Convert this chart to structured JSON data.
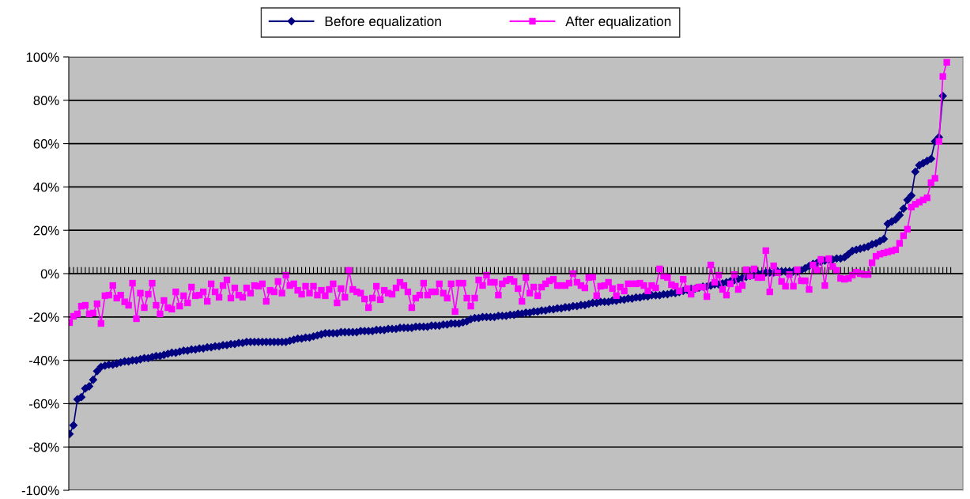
{
  "chart_data": {
    "type": "line",
    "categories": [
      null,
      null,
      null,
      null,
      null,
      null,
      null,
      null,
      null,
      null,
      null,
      null,
      null,
      null,
      null,
      null,
      null,
      null,
      null,
      null,
      null,
      null,
      null,
      null,
      null,
      null,
      null,
      null,
      null,
      null,
      null,
      null,
      null,
      null,
      null,
      null,
      null,
      null,
      null,
      null,
      null,
      null,
      null,
      null,
      null,
      null,
      null,
      null,
      null,
      null,
      null,
      null,
      null,
      null,
      null,
      null,
      null,
      null,
      null,
      null,
      null,
      null,
      null,
      null,
      null,
      null,
      null,
      null,
      null,
      null,
      null,
      null,
      null,
      null,
      null,
      null,
      null,
      null,
      null,
      null,
      null,
      null,
      null,
      null,
      null,
      null,
      null,
      null,
      null,
      null,
      null,
      null,
      null,
      null,
      null,
      null,
      null,
      null,
      null,
      null,
      null,
      null,
      null,
      null,
      null,
      null,
      null,
      null,
      null,
      null,
      null,
      null,
      null,
      null,
      null,
      null,
      null,
      null,
      null,
      null,
      null,
      null,
      null,
      null,
      null,
      null,
      null,
      null,
      null,
      null,
      null,
      null,
      null,
      null,
      null,
      null,
      null,
      null,
      null,
      null,
      null,
      null,
      null,
      null,
      null,
      null,
      null,
      null,
      null,
      null,
      null,
      null,
      null,
      null,
      null,
      null,
      null,
      null,
      null,
      null,
      null,
      null,
      null,
      null,
      null,
      null,
      null,
      null,
      null,
      null,
      null,
      null,
      null,
      null,
      null,
      null,
      null,
      null,
      null,
      null,
      null,
      null,
      null,
      null,
      null,
      null,
      null,
      null,
      null,
      null,
      null,
      null,
      null,
      null,
      null,
      null,
      null,
      null,
      null,
      null,
      null,
      null,
      null,
      null,
      null,
      null,
      null,
      null,
      null,
      null,
      null,
      null,
      null,
      null,
      null,
      null,
      null,
      null,
      null,
      null,
      null,
      null,
      null,
      null,
      null
    ],
    "series": [
      {
        "name": "Before equalization",
        "color": "#000080",
        "marker": "diamond",
        "values": [
          -74,
          -70,
          -58,
          -57,
          -53,
          -52,
          -49,
          -45,
          -43,
          -42.5,
          -42,
          -42,
          -41.5,
          -41,
          -40.5,
          -40.5,
          -40,
          -40,
          -39.5,
          -39,
          -39,
          -38.5,
          -38,
          -38,
          -37.5,
          -37,
          -36.5,
          -36.5,
          -36,
          -35.5,
          -35.5,
          -35,
          -35,
          -34.5,
          -34.5,
          -34,
          -34,
          -33.5,
          -33.5,
          -33,
          -33,
          -32.5,
          -32.5,
          -32,
          -32,
          -31.5,
          -31.5,
          -31.5,
          -31.5,
          -31.5,
          -31.5,
          -31.5,
          -31.5,
          -31.5,
          -31.5,
          -31.5,
          -31,
          -30.5,
          -30,
          -30,
          -29.5,
          -29.5,
          -29,
          -28.5,
          -28,
          -27.5,
          -27.5,
          -27.5,
          -27.5,
          -27,
          -27,
          -27,
          -27,
          -27,
          -26.5,
          -26.5,
          -26.5,
          -26.5,
          -26,
          -26,
          -26,
          -25.5,
          -25.5,
          -25.5,
          -25,
          -25,
          -25,
          -25,
          -24.5,
          -24.5,
          -24.5,
          -24.5,
          -24,
          -24,
          -24,
          -23.5,
          -23.5,
          -23,
          -23,
          -23,
          -22.5,
          -22,
          -21,
          -20.5,
          -20.5,
          -20,
          -20,
          -20,
          -20,
          -19.5,
          -19.5,
          -19.5,
          -19,
          -19,
          -18.5,
          -18.5,
          -18,
          -18,
          -17.5,
          -17.5,
          -17,
          -17,
          -16.5,
          -16.5,
          -16,
          -16,
          -15.5,
          -15.5,
          -15,
          -15,
          -14.5,
          -14.5,
          -14,
          -13.5,
          -13.5,
          -13,
          -13,
          -13,
          -12.5,
          -12.5,
          -12,
          -12,
          -11.5,
          -11.5,
          -11,
          -11,
          -10.5,
          -10.5,
          -10,
          -10,
          -10,
          -9.5,
          -9.5,
          -9,
          -9,
          -8.5,
          -8,
          -7.5,
          -7,
          -7,
          -6.5,
          -6,
          -6,
          -5.5,
          -5,
          -5,
          -4.5,
          -4,
          -3.5,
          -3,
          -2.5,
          -2,
          -1.5,
          -1,
          -0.5,
          0,
          0,
          0.5,
          0.5,
          0.5,
          1,
          1,
          1,
          1,
          1,
          1,
          1.5,
          2.5,
          3.5,
          4.5,
          5,
          5.5,
          6,
          6.5,
          6.5,
          7,
          7,
          7.5,
          9,
          10.5,
          11,
          11.5,
          12,
          12.5,
          13.5,
          14,
          15,
          16,
          23,
          24,
          25,
          27,
          30,
          34,
          36,
          47,
          50,
          51,
          52,
          53,
          61,
          63,
          82,
          null,
          null
        ]
      },
      {
        "name": "After equalization",
        "color": "#ff00ff",
        "marker": "square",
        "values": [
          -22.6,
          -19.7,
          -18.6,
          -15,
          -14.6,
          -18.6,
          -18.2,
          -13.9,
          -23,
          -10.2,
          -9.9,
          -5.5,
          -11.3,
          -9.9,
          -13,
          -14.6,
          -4.4,
          -20.8,
          -9,
          -15.7,
          -9.5,
          -4.4,
          -14.6,
          -18.6,
          -12.4,
          -15.7,
          -16.4,
          -8.4,
          -15,
          -10.2,
          -13.5,
          -6.2,
          -10.2,
          -9.9,
          -8.4,
          -12.8,
          -4.7,
          -8.4,
          -10.9,
          -5.5,
          -2.9,
          -11.3,
          -6.6,
          -9.9,
          -10.9,
          -6.6,
          -9,
          -5.5,
          -5.8,
          -4.7,
          -12.8,
          -7.7,
          -8.4,
          -3.6,
          -9,
          -0.7,
          -5.5,
          -4.7,
          -7.7,
          -9.5,
          -5.8,
          -9,
          -5.8,
          -9.9,
          -7.7,
          -10.2,
          -7.3,
          -4.7,
          -13.5,
          -6.9,
          -10.9,
          1.5,
          -7.3,
          -8.4,
          -9,
          -11.7,
          -15.7,
          -11.3,
          -5.8,
          -12,
          -7.7,
          -9,
          -9.5,
          -6.6,
          -4,
          -5.5,
          -8.4,
          -15.7,
          -11.3,
          -9.9,
          -4.4,
          -9.9,
          -8.4,
          -8.4,
          -4.7,
          -9,
          -11.3,
          -4.7,
          -17.5,
          -4.4,
          -4.4,
          -11.3,
          -15,
          -11.3,
          -2.9,
          -5.5,
          -0.7,
          -4,
          -4,
          -9.9,
          -4.7,
          -3.3,
          -2.6,
          -3.6,
          -6.9,
          -12.8,
          -1.8,
          -9,
          -6.2,
          -10.2,
          -6.2,
          -4.7,
          -3.3,
          -2.6,
          -5.5,
          -5.5,
          -5.5,
          -4.4,
          0,
          -4,
          -5.5,
          -6.6,
          -1.8,
          -1.5,
          -10.2,
          -5.8,
          -5.5,
          -4,
          -6.9,
          -10.2,
          -6.2,
          -8,
          -4.7,
          -4.7,
          -4.7,
          -4.4,
          -5.5,
          -8,
          -5.5,
          -6.6,
          2.2,
          -1.1,
          -1.8,
          -5.1,
          -5.8,
          -8,
          -2.6,
          -6.9,
          -9.5,
          -6.9,
          -6.2,
          -6.2,
          -10.6,
          4,
          -4,
          -0.7,
          -7.3,
          -9.9,
          -4.7,
          -0.4,
          -7.3,
          -5.5,
          1.8,
          -1.1,
          2.2,
          -1.8,
          -1.8,
          10.6,
          -8.4,
          3.6,
          0.4,
          -3.6,
          -5.8,
          -0.4,
          -5.8,
          1.8,
          -3.3,
          -3.3,
          -7.3,
          4,
          1.5,
          6.6,
          -5.5,
          6.9,
          3.3,
          1.5,
          -2.2,
          -2.6,
          -2.2,
          -0.7,
          0.7,
          0,
          -0.4,
          -0.4,
          5,
          8,
          9,
          9.5,
          10,
          10.5,
          11,
          14,
          17.5,
          20.5,
          30.7,
          32,
          33,
          34,
          35,
          42,
          44,
          61,
          91,
          97.5,
          null
        ]
      }
    ],
    "ylim": [
      -100,
      100
    ],
    "yticks": [
      {
        "value": -100,
        "label": "-100%"
      },
      {
        "value": -80,
        "label": "-80%"
      },
      {
        "value": -60,
        "label": "-60%"
      },
      {
        "value": -40,
        "label": "-40%"
      },
      {
        "value": -20,
        "label": "-20%"
      },
      {
        "value": 0,
        "label": "0%"
      },
      {
        "value": 20,
        "label": "20%"
      },
      {
        "value": 40,
        "label": "40%"
      },
      {
        "value": 60,
        "label": "60%"
      },
      {
        "value": 80,
        "label": "80%"
      },
      {
        "value": 100,
        "label": "100%"
      }
    ],
    "grid": "y",
    "legend": "top",
    "line_style": "solid",
    "tick_labels": "y"
  }
}
